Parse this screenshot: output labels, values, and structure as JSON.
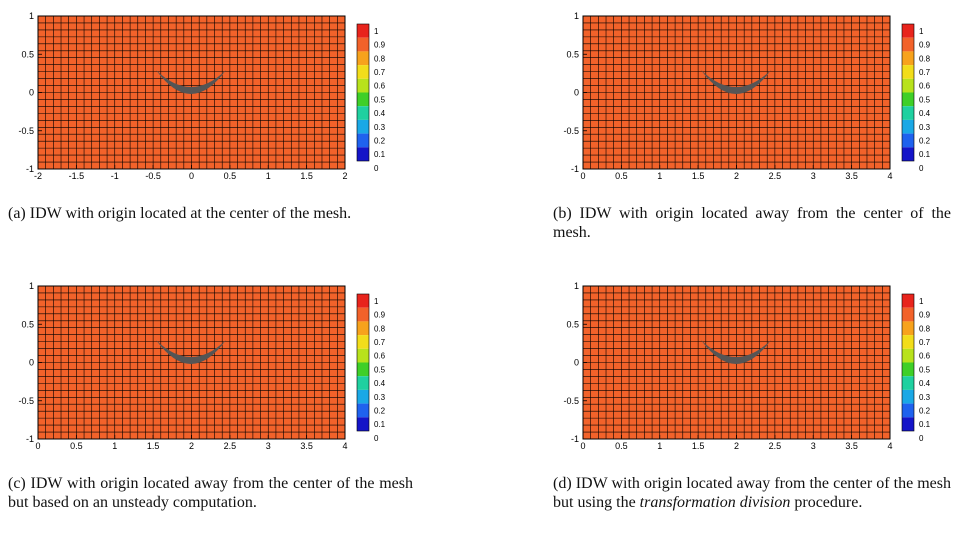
{
  "colors": {
    "mesh_fill": "#f2622a",
    "mesh_line": "#000000",
    "airfoil": "#555555"
  },
  "colorbar": {
    "labels": [
      "1",
      "0.9",
      "0.8",
      "0.7",
      "0.6",
      "0.5",
      "0.4",
      "0.3",
      "0.2",
      "0.1",
      "0"
    ],
    "colors": [
      "#e8241c",
      "#f2622a",
      "#f7a21c",
      "#f2dd1a",
      "#b8e21c",
      "#3fcf28",
      "#1fd0a0",
      "#1aa8e6",
      "#1f62ee",
      "#1414c8"
    ]
  },
  "panels": [
    {
      "id": "a",
      "y_ticks": [
        "1",
        "0.5",
        "0",
        "-0.5",
        "-1"
      ],
      "x_ticks": [
        "-2",
        "-1.5",
        "-1",
        "-0.5",
        "0",
        "0.5",
        "1",
        "1.5",
        "2"
      ],
      "caption_label": "(a)",
      "caption": "IDW with origin located at the center of the mesh.",
      "caption_italic": "",
      "caption_tail": ""
    },
    {
      "id": "b",
      "y_ticks": [
        "1",
        "0.5",
        "0",
        "-0.5",
        "-1"
      ],
      "x_ticks": [
        "0",
        "0.5",
        "1",
        "1.5",
        "2",
        "2.5",
        "3",
        "3.5",
        "4"
      ],
      "caption_label": "(b)",
      "caption": "IDW with origin located away from the center of the mesh.",
      "caption_italic": "",
      "caption_tail": ""
    },
    {
      "id": "c",
      "y_ticks": [
        "1",
        "0.5",
        "0",
        "-0.5",
        "-1"
      ],
      "x_ticks": [
        "0",
        "0.5",
        "1",
        "1.5",
        "2",
        "2.5",
        "3",
        "3.5",
        "4"
      ],
      "caption_label": "(c)",
      "caption": "IDW with origin located away from the center of the mesh but based on an unsteady computation.",
      "caption_italic": "",
      "caption_tail": ""
    },
    {
      "id": "d",
      "y_ticks": [
        "1",
        "0.5",
        "0",
        "-0.5",
        "-1"
      ],
      "x_ticks": [
        "0",
        "0.5",
        "1",
        "1.5",
        "2",
        "2.5",
        "3",
        "3.5",
        "4"
      ],
      "caption_label": "(d)",
      "caption": "IDW with origin located away from the center of the mesh but using the",
      "caption_italic": "transformation division",
      "caption_tail": "procedure."
    }
  ]
}
